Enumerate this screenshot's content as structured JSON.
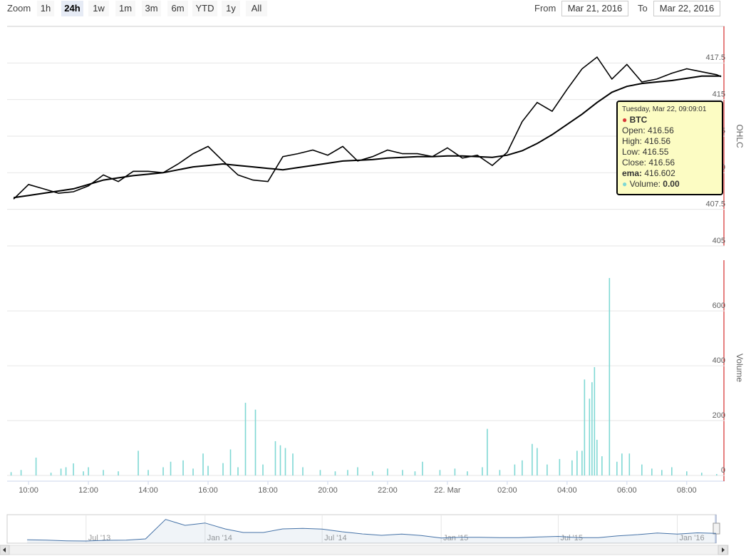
{
  "range_selector": {
    "label": "Zoom",
    "buttons": [
      "1h",
      "24h",
      "1w",
      "1m",
      "3m",
      "6m",
      "YTD",
      "1y",
      "All"
    ],
    "selected": 1
  },
  "range_inputs": {
    "from_label": "From",
    "from": "Mar 21, 2016",
    "to_label": "To",
    "to": "Mar 22, 2016"
  },
  "chart_data": [
    {
      "type": "line",
      "y_axis_title": "OHLC",
      "grid": true,
      "xlim": [
        "2016-03-21T09:17",
        "2016-03-22T09:16"
      ],
      "ylim": [
        405,
        420
      ],
      "yticks": [
        405,
        407.5,
        410,
        412.5,
        415,
        417.5
      ],
      "x": [
        "2016-03-21T09:30",
        "2016-03-21T10:00",
        "2016-03-21T10:30",
        "2016-03-21T11:00",
        "2016-03-21T11:30",
        "2016-03-21T12:00",
        "2016-03-21T12:30",
        "2016-03-21T13:00",
        "2016-03-21T13:30",
        "2016-03-21T14:00",
        "2016-03-21T14:30",
        "2016-03-21T15:00",
        "2016-03-21T15:30",
        "2016-03-21T16:00",
        "2016-03-21T16:30",
        "2016-03-21T17:00",
        "2016-03-21T17:30",
        "2016-03-21T18:00",
        "2016-03-21T18:30",
        "2016-03-21T19:00",
        "2016-03-21T19:30",
        "2016-03-21T20:00",
        "2016-03-21T20:30",
        "2016-03-21T21:00",
        "2016-03-21T21:30",
        "2016-03-21T22:00",
        "2016-03-21T22:30",
        "2016-03-21T23:00",
        "2016-03-21T23:30",
        "2016-03-22T00:00",
        "2016-03-22T00:30",
        "2016-03-22T01:00",
        "2016-03-22T01:30",
        "2016-03-22T02:00",
        "2016-03-22T02:30",
        "2016-03-22T03:00",
        "2016-03-22T03:30",
        "2016-03-22T04:00",
        "2016-03-22T04:30",
        "2016-03-22T05:00",
        "2016-03-22T05:30",
        "2016-03-22T06:00",
        "2016-03-22T06:30",
        "2016-03-22T07:00",
        "2016-03-22T07:30",
        "2016-03-22T08:00",
        "2016-03-22T08:30",
        "2016-03-22T09:00",
        "2016-03-22T09:09:01"
      ],
      "series": [
        {
          "name": "BTC",
          "color": "#000000",
          "values": [
            408.2,
            409.2,
            408.9,
            408.6,
            408.7,
            409.1,
            409.85,
            409.4,
            410.1,
            410.1,
            410.0,
            410.6,
            411.3,
            411.8,
            410.8,
            409.85,
            409.5,
            409.4,
            411.1,
            411.3,
            411.55,
            411.2,
            411.8,
            410.8,
            411.1,
            411.55,
            411.3,
            411.3,
            411.1,
            411.7,
            411.0,
            411.2,
            410.5,
            411.4,
            413.5,
            414.8,
            414.2,
            415.7,
            417.1,
            417.9,
            416.4,
            417.4,
            416.2,
            416.4,
            416.8,
            417.1,
            416.9,
            416.7,
            416.56
          ]
        },
        {
          "name": "ema",
          "color": "#000000",
          "values": [
            408.3,
            408.45,
            408.6,
            408.75,
            408.9,
            409.2,
            409.5,
            409.65,
            409.8,
            409.9,
            410.0,
            410.2,
            410.4,
            410.5,
            410.6,
            410.5,
            410.4,
            410.3,
            410.2,
            410.35,
            410.5,
            410.65,
            410.8,
            410.85,
            410.9,
            411.0,
            411.05,
            411.1,
            411.1,
            411.15,
            411.15,
            411.1,
            411.05,
            411.2,
            411.5,
            412.0,
            412.6,
            413.3,
            414.0,
            414.8,
            415.5,
            415.9,
            416.1,
            416.2,
            416.3,
            416.45,
            416.6,
            416.6,
            416.602
          ]
        }
      ],
      "tooltip": {
        "date": "Tuesday, Mar 22, 09:09:01",
        "series": "BTC",
        "series_color": "#d9383a",
        "rows": [
          {
            "label": "Open:",
            "value": 416.56
          },
          {
            "label": "High:",
            "value": 416.56
          },
          {
            "label": "Low:",
            "value": 416.55
          },
          {
            "label": "Close:",
            "value": 416.56
          },
          {
            "label": "ema:",
            "value": 416.602
          },
          {
            "label": "Volume:",
            "value": "0.00"
          }
        ],
        "volume_color": "#7fd8d4"
      }
    },
    {
      "type": "bar",
      "y_axis_title": "Volume",
      "grid": true,
      "color": "#7fd8d4",
      "xlim": [
        "2016-03-21T09:17",
        "2016-03-22T09:16"
      ],
      "xticks": [
        {
          "value": "2016-03-21T10:00",
          "label": "10:00"
        },
        {
          "value": "2016-03-21T12:00",
          "label": "12:00"
        },
        {
          "value": "2016-03-21T14:00",
          "label": "14:00"
        },
        {
          "value": "2016-03-21T16:00",
          "label": "16:00"
        },
        {
          "value": "2016-03-21T18:00",
          "label": "18:00"
        },
        {
          "value": "2016-03-21T20:00",
          "label": "20:00"
        },
        {
          "value": "2016-03-21T22:00",
          "label": "22:00"
        },
        {
          "value": "2016-03-22T00:00",
          "label": "22. Mar"
        },
        {
          "value": "2016-03-22T02:00",
          "label": "02:00"
        },
        {
          "value": "2016-03-22T04:00",
          "label": "04:00"
        },
        {
          "value": "2016-03-22T06:00",
          "label": "06:00"
        },
        {
          "value": "2016-03-22T08:00",
          "label": "08:00"
        }
      ],
      "ylim": [
        0,
        785
      ],
      "yticks": [
        0,
        200,
        400,
        600
      ],
      "x": [
        "2016-03-21T09:25",
        "2016-03-21T09:45",
        "2016-03-21T10:15",
        "2016-03-21T10:45",
        "2016-03-21T11:05",
        "2016-03-21T11:15",
        "2016-03-21T11:30",
        "2016-03-21T11:50",
        "2016-03-21T12:00",
        "2016-03-21T12:30",
        "2016-03-21T13:00",
        "2016-03-21T13:40",
        "2016-03-21T14:00",
        "2016-03-21T14:30",
        "2016-03-21T14:45",
        "2016-03-21T15:10",
        "2016-03-21T15:30",
        "2016-03-21T15:50",
        "2016-03-21T16:00",
        "2016-03-21T16:30",
        "2016-03-21T16:45",
        "2016-03-21T17:00",
        "2016-03-21T17:15",
        "2016-03-21T17:35",
        "2016-03-21T17:50",
        "2016-03-21T18:15",
        "2016-03-21T18:25",
        "2016-03-21T18:35",
        "2016-03-21T18:50",
        "2016-03-21T19:10",
        "2016-03-21T19:45",
        "2016-03-21T20:15",
        "2016-03-21T20:40",
        "2016-03-21T21:00",
        "2016-03-21T21:30",
        "2016-03-21T22:00",
        "2016-03-21T22:30",
        "2016-03-21T22:55",
        "2016-03-21T23:10",
        "2016-03-21T23:45",
        "2016-03-22T00:15",
        "2016-03-22T00:40",
        "2016-03-22T01:10",
        "2016-03-22T01:20",
        "2016-03-22T01:45",
        "2016-03-22T02:15",
        "2016-03-22T02:30",
        "2016-03-22T02:50",
        "2016-03-22T03:00",
        "2016-03-22T03:20",
        "2016-03-22T03:45",
        "2016-03-22T04:10",
        "2016-03-22T04:20",
        "2016-03-22T04:30",
        "2016-03-22T04:35",
        "2016-03-22T04:45",
        "2016-03-22T04:50",
        "2016-03-22T04:55",
        "2016-03-22T05:00",
        "2016-03-22T05:10",
        "2016-03-22T05:25",
        "2016-03-22T05:40",
        "2016-03-22T05:50",
        "2016-03-22T06:05",
        "2016-03-22T06:30",
        "2016-03-22T06:50",
        "2016-03-22T07:10",
        "2016-03-22T07:30",
        "2016-03-22T08:00",
        "2016-03-22T08:30",
        "2016-03-22T09:00"
      ],
      "values": [
        12,
        20,
        65,
        10,
        25,
        30,
        44,
        15,
        30,
        20,
        15,
        90,
        20,
        30,
        50,
        55,
        25,
        80,
        35,
        45,
        95,
        30,
        265,
        240,
        40,
        125,
        110,
        100,
        80,
        30,
        20,
        15,
        20,
        30,
        15,
        25,
        20,
        15,
        50,
        20,
        25,
        15,
        30,
        170,
        20,
        40,
        55,
        115,
        100,
        40,
        60,
        55,
        90,
        90,
        350,
        280,
        340,
        395,
        130,
        70,
        720,
        50,
        80,
        80,
        40,
        25,
        20,
        30,
        15,
        10,
        5
      ]
    },
    {
      "type": "area",
      "color": "#4572a7",
      "xlim": [
        "2013-03",
        "2016-03"
      ],
      "ylim": [
        0,
        1200
      ],
      "xticks": [
        {
          "value": "2013-07",
          "label": "Jul '13"
        },
        {
          "value": "2014-01",
          "label": "Jan '14"
        },
        {
          "value": "2014-07",
          "label": "Jul '14"
        },
        {
          "value": "2015-01",
          "label": "Jan '15"
        },
        {
          "value": "2015-07",
          "label": "Jul '15"
        },
        {
          "value": "2016-01",
          "label": "Jan '16"
        }
      ],
      "x": [
        "2013-04",
        "2013-05",
        "2013-06",
        "2013-07",
        "2013-08",
        "2013-09",
        "2013-10",
        "2013-11",
        "2013-12",
        "2014-01",
        "2014-02",
        "2014-03",
        "2014-04",
        "2014-05",
        "2014-06",
        "2014-07",
        "2014-08",
        "2014-09",
        "2014-10",
        "2014-11",
        "2014-12",
        "2015-01",
        "2015-02",
        "2015-03",
        "2015-04",
        "2015-05",
        "2015-06",
        "2015-07",
        "2015-08",
        "2015-09",
        "2015-10",
        "2015-11",
        "2015-12",
        "2016-01",
        "2016-02",
        "2016-03"
      ],
      "values": [
        140,
        125,
        100,
        90,
        120,
        130,
        180,
        1000,
        750,
        850,
        600,
        450,
        450,
        600,
        620,
        590,
        480,
        390,
        330,
        380,
        320,
        220,
        250,
        250,
        235,
        230,
        260,
        285,
        230,
        235,
        310,
        360,
        430,
        380,
        435,
        415
      ]
    }
  ]
}
